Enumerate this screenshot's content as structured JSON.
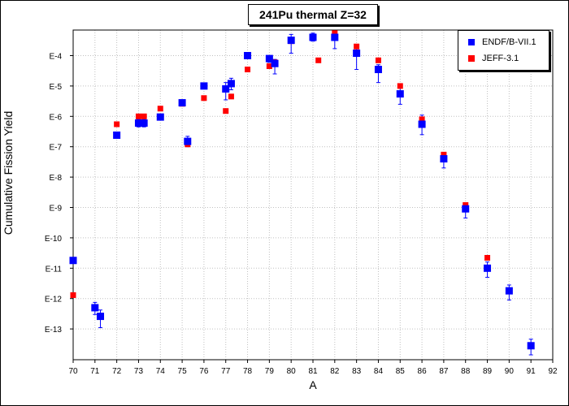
{
  "chart_data": {
    "type": "scatter",
    "title": "241Pu thermal Z=32",
    "xlabel": "A",
    "ylabel": "Cumulative Fission Yield",
    "xlim": [
      70,
      92
    ],
    "x_ticks": [
      "70",
      "71",
      "72",
      "73",
      "74",
      "75",
      "76",
      "77",
      "78",
      "79",
      "80",
      "81",
      "82",
      "83",
      "84",
      "85",
      "86",
      "87",
      "88",
      "89",
      "90",
      "91",
      "92"
    ],
    "ylim_exponent": [
      -14,
      -3.3
    ],
    "y_ticks": [
      "E-4",
      "E-5",
      "E-6",
      "E-7",
      "E-8",
      "E-9",
      "E-10",
      "E-11",
      "E-12",
      "E-13"
    ],
    "y_scale": "log",
    "grid": true,
    "legend_position": "top-right",
    "series": [
      {
        "name": "ENDF/B-VII.1",
        "color": "#0000ff",
        "marker": "square",
        "points": [
          {
            "x": 70.0,
            "y": 1.8e-11,
            "err": null
          },
          {
            "x": 71.0,
            "y": 5e-13,
            "err": [
              3e-13,
              7.5e-13
            ]
          },
          {
            "x": 71.25,
            "y": 2.6e-13,
            "err": [
              1.1e-13,
              4.2e-13
            ]
          },
          {
            "x": 72.0,
            "y": 2.4e-07,
            "err": null
          },
          {
            "x": 73.0,
            "y": 6e-07,
            "err": [
              4.5e-07,
              8e-07
            ]
          },
          {
            "x": 73.25,
            "y": 6e-07,
            "err": [
              4.5e-07,
              8e-07
            ]
          },
          {
            "x": 74.0,
            "y": 9.5e-07,
            "err": null
          },
          {
            "x": 75.0,
            "y": 2.8e-06,
            "err": null
          },
          {
            "x": 75.25,
            "y": 1.5e-07,
            "err": [
              1e-07,
              2.2e-07
            ]
          },
          {
            "x": 76.0,
            "y": 1e-05,
            "err": null
          },
          {
            "x": 77.0,
            "y": 8e-06,
            "err": [
              3.5e-06,
              1.3e-05
            ]
          },
          {
            "x": 77.25,
            "y": 1.2e-05,
            "err": [
              7.5e-06,
              1.8e-05
            ]
          },
          {
            "x": 78.0,
            "y": 0.0001,
            "err": [
              8.5e-05,
              0.00012
            ]
          },
          {
            "x": 79.0,
            "y": 8e-05,
            "err": [
              6e-05,
              0.0001
            ]
          },
          {
            "x": 79.25,
            "y": 5.5e-05,
            "err": [
              2.5e-05,
              7.5e-05
            ]
          },
          {
            "x": 80.0,
            "y": 0.00032,
            "err": [
              0.00012,
              0.0005
            ]
          },
          {
            "x": 81.0,
            "y": 0.0004,
            "err": [
              0.0003,
              0.00055
            ]
          },
          {
            "x": 82.0,
            "y": 0.0004,
            "err": [
              0.00017,
              0.00055
            ]
          },
          {
            "x": 83.0,
            "y": 0.00012,
            "err": [
              3.5e-05,
              0.0002
            ]
          },
          {
            "x": 84.0,
            "y": 3.5e-05,
            "err": [
              1.3e-05,
              5e-05
            ]
          },
          {
            "x": 85.0,
            "y": 5.5e-06,
            "err": [
              2.5e-06,
              1e-05
            ]
          },
          {
            "x": 86.0,
            "y": 5.5e-07,
            "err": [
              2.5e-07,
              1.1e-06
            ]
          },
          {
            "x": 87.0,
            "y": 4e-08,
            "err": [
              2e-08,
              6e-08
            ]
          },
          {
            "x": 88.0,
            "y": 9e-10,
            "err": [
              4.5e-10,
              1.3e-09
            ]
          },
          {
            "x": 89.0,
            "y": 1e-11,
            "err": [
              5e-12,
              1.6e-11
            ]
          },
          {
            "x": 90.0,
            "y": 1.8e-12,
            "err": [
              9e-13,
              2.8e-12
            ]
          },
          {
            "x": 91.0,
            "y": 2.8e-14,
            "err": [
              1.4e-14,
              4.6e-14
            ]
          }
        ]
      },
      {
        "name": "JEFF-3.1",
        "color": "#ff0000",
        "marker": "square",
        "points": [
          {
            "x": 70.0,
            "y": 1.3e-12,
            "err": null
          },
          {
            "x": 72.0,
            "y": 5.5e-07,
            "err": null
          },
          {
            "x": 73.0,
            "y": 1e-06,
            "err": null
          },
          {
            "x": 73.25,
            "y": 1e-06,
            "err": null
          },
          {
            "x": 74.0,
            "y": 1.8e-06,
            "err": null
          },
          {
            "x": 75.0,
            "y": 2.6e-06,
            "err": null
          },
          {
            "x": 75.25,
            "y": 1.2e-07,
            "err": null
          },
          {
            "x": 76.0,
            "y": 4e-06,
            "err": null
          },
          {
            "x": 77.0,
            "y": 1.5e-06,
            "err": null
          },
          {
            "x": 77.25,
            "y": 4.5e-06,
            "err": null
          },
          {
            "x": 78.0,
            "y": 3.5e-05,
            "err": null
          },
          {
            "x": 79.0,
            "y": 4.5e-05,
            "err": null
          },
          {
            "x": 79.25,
            "y": 6e-05,
            "err": null
          },
          {
            "x": 80.0,
            "y": 0.0003,
            "err": null
          },
          {
            "x": 81.0,
            "y": 0.0004,
            "err": null
          },
          {
            "x": 81.25,
            "y": 7e-05,
            "err": null
          },
          {
            "x": 82.0,
            "y": 0.00055,
            "err": null
          },
          {
            "x": 83.0,
            "y": 0.0002,
            "err": null
          },
          {
            "x": 84.0,
            "y": 7e-05,
            "err": null
          },
          {
            "x": 85.0,
            "y": 1e-05,
            "err": null
          },
          {
            "x": 86.0,
            "y": 8e-07,
            "err": null
          },
          {
            "x": 87.0,
            "y": 5.5e-08,
            "err": null
          },
          {
            "x": 88.0,
            "y": 1.2e-09,
            "err": null
          },
          {
            "x": 89.0,
            "y": 2.2e-11,
            "err": null
          }
        ]
      }
    ]
  }
}
